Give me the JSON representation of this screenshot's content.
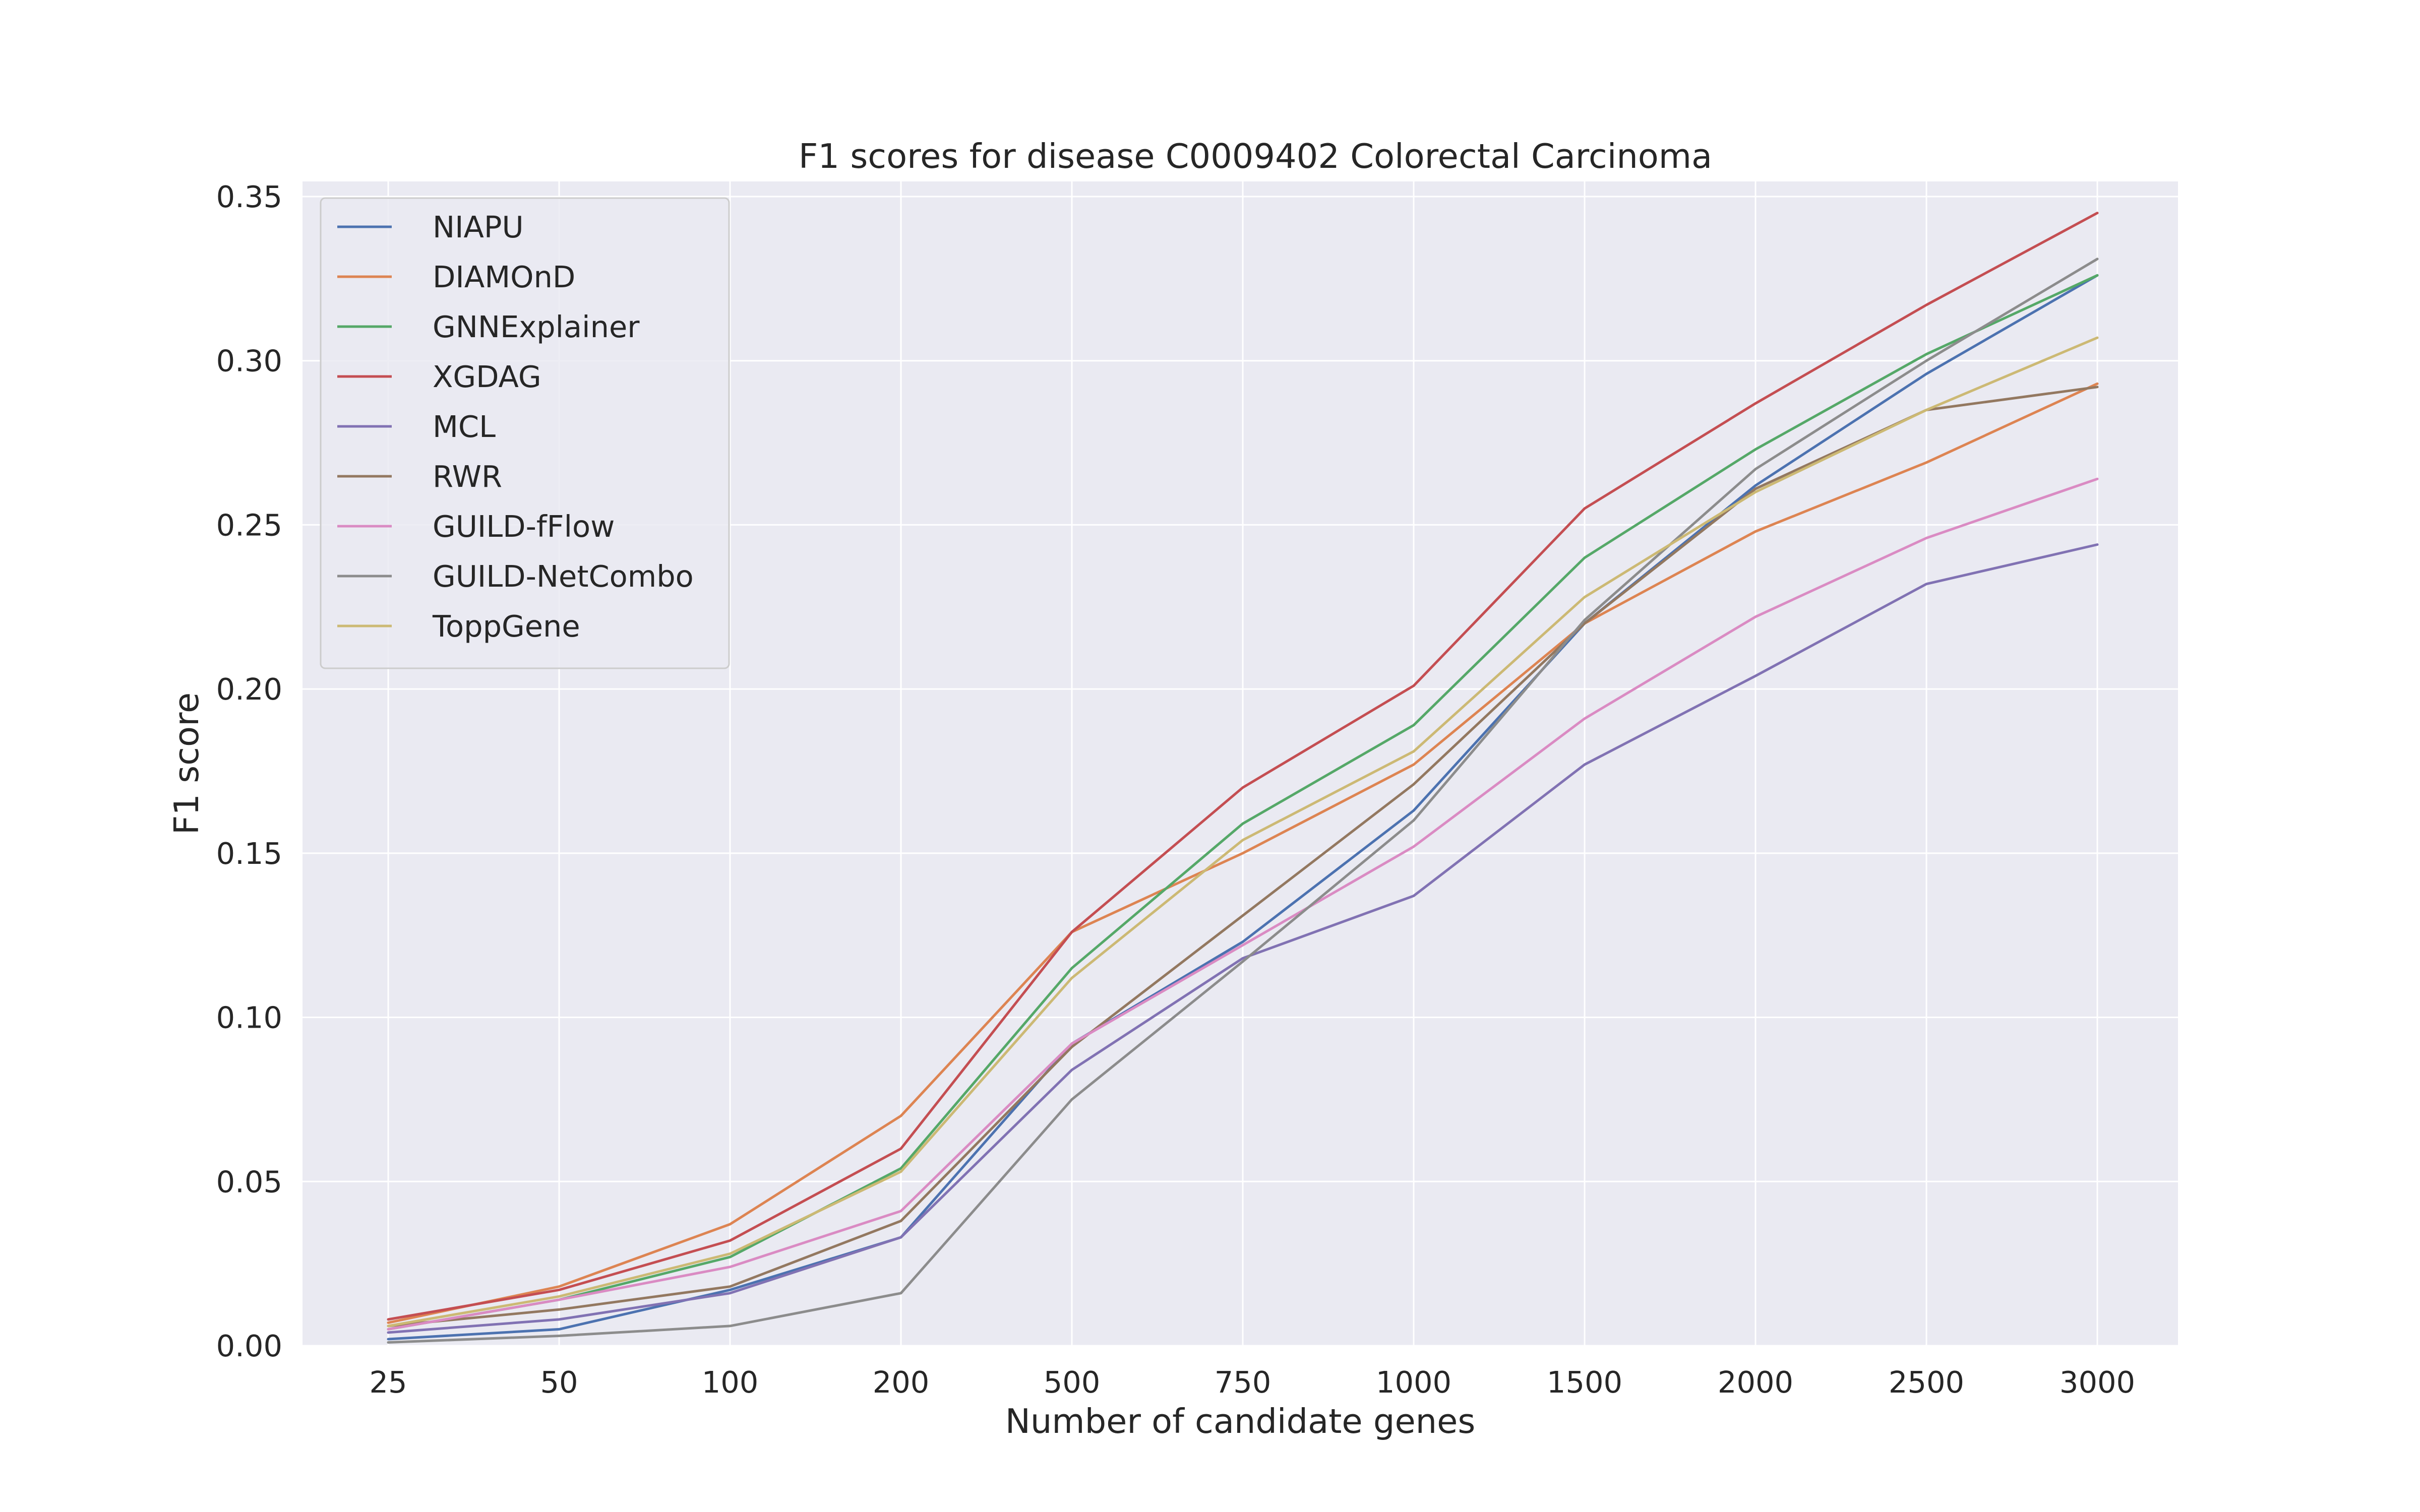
{
  "chart_data": {
    "type": "line",
    "title": "F1 scores for disease C0009402 Colorectal Carcinoma",
    "xlabel": "Number of candidate genes",
    "ylabel": "F1 score",
    "categories": [
      "25",
      "50",
      "100",
      "200",
      "500",
      "750",
      "1000",
      "1500",
      "2000",
      "2500",
      "3000"
    ],
    "ylim": [
      0,
      0.35
    ],
    "yticks": [
      "0.00",
      "0.05",
      "0.10",
      "0.15",
      "0.20",
      "0.25",
      "0.30",
      "0.35"
    ],
    "grid": true,
    "legend_position": "top-left",
    "background": "#eaeaf2",
    "series": [
      {
        "name": "NIAPU",
        "color": "#4c72b0",
        "values": [
          0.002,
          0.005,
          0.017,
          0.033,
          0.092,
          0.123,
          0.163,
          0.22,
          0.262,
          0.296,
          0.326
        ]
      },
      {
        "name": "DIAMOnD",
        "color": "#dd8452",
        "values": [
          0.007,
          0.018,
          0.037,
          0.07,
          0.126,
          0.15,
          0.177,
          0.22,
          0.248,
          0.269,
          0.293
        ]
      },
      {
        "name": "GNNExplainer",
        "color": "#55a868",
        "values": [
          0.005,
          0.014,
          0.027,
          0.054,
          0.115,
          0.159,
          0.189,
          0.24,
          0.273,
          0.302,
          0.326
        ]
      },
      {
        "name": "XGDAG",
        "color": "#c44e52",
        "values": [
          0.008,
          0.017,
          0.032,
          0.06,
          0.126,
          0.17,
          0.201,
          0.255,
          0.287,
          0.317,
          0.345
        ]
      },
      {
        "name": "MCL",
        "color": "#8172b3",
        "values": [
          0.004,
          0.008,
          0.016,
          0.033,
          0.084,
          0.118,
          0.137,
          0.177,
          0.204,
          0.232,
          0.244
        ]
      },
      {
        "name": "RWR",
        "color": "#937860",
        "values": [
          0.006,
          0.011,
          0.018,
          0.038,
          0.091,
          0.131,
          0.171,
          0.22,
          0.261,
          0.285,
          0.292
        ]
      },
      {
        "name": "GUILD-fFlow",
        "color": "#da8bc3",
        "values": [
          0.005,
          0.014,
          0.024,
          0.041,
          0.092,
          0.122,
          0.152,
          0.191,
          0.222,
          0.246,
          0.264
        ]
      },
      {
        "name": "GUILD-NetCombo",
        "color": "#8c8c8c",
        "values": [
          0.001,
          0.003,
          0.006,
          0.016,
          0.075,
          0.117,
          0.16,
          0.221,
          0.267,
          0.3,
          0.331
        ]
      },
      {
        "name": "ToppGene",
        "color": "#ccb974",
        "values": [
          0.006,
          0.015,
          0.028,
          0.053,
          0.112,
          0.154,
          0.181,
          0.228,
          0.26,
          0.285,
          0.307
        ]
      }
    ]
  }
}
